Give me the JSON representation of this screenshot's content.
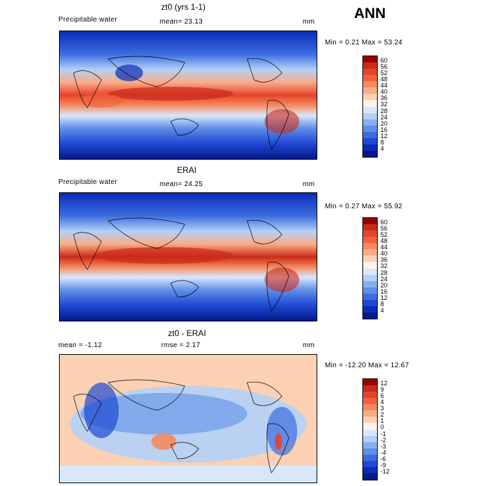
{
  "season": "ANN",
  "panels": [
    {
      "title": "zt0 (yrs 1-1)",
      "left": "Precipitable water",
      "mid": "mean=  23.13",
      "units": "mm",
      "minmax": "Min =   0.21 Max =  53.24",
      "colorbar": {
        "labels": [
          "60",
          "56",
          "52",
          "48",
          "44",
          "40",
          "36",
          "32",
          "28",
          "24",
          "20",
          "16",
          "12",
          "8",
          "4"
        ],
        "colors": [
          "#990000",
          "#cc2a1a",
          "#e6432c",
          "#f0623e",
          "#f58a5e",
          "#f9ad87",
          "#fbd0b3",
          "#fff3ea",
          "#d8e7fb",
          "#b3d0f7",
          "#88b0f0",
          "#5f8fe8",
          "#3c6de0",
          "#1f48d4",
          "#0b2bb8",
          "#041a8a"
        ]
      }
    },
    {
      "title": "ERAI",
      "left": "Precipitable water",
      "mid": "mean=  24.25",
      "units": "mm",
      "minmax": "Min =   0.27 Max =  55.92",
      "colorbar": {
        "labels": [
          "60",
          "56",
          "52",
          "48",
          "44",
          "40",
          "36",
          "32",
          "28",
          "24",
          "20",
          "16",
          "12",
          "8",
          "4"
        ],
        "colors": [
          "#990000",
          "#cc2a1a",
          "#e6432c",
          "#f0623e",
          "#f58a5e",
          "#f9ad87",
          "#fbd0b3",
          "#fff3ea",
          "#d8e7fb",
          "#b3d0f7",
          "#88b0f0",
          "#5f8fe8",
          "#3c6de0",
          "#1f48d4",
          "#0b2bb8",
          "#041a8a"
        ]
      }
    },
    {
      "title": "zt0 - ERAI",
      "left": "mean =  -1.12",
      "mid": "rmse =   2.17",
      "units": "mm",
      "minmax": "Min = -12.20 Max =  12.67",
      "colorbar": {
        "labels": [
          "12",
          "9",
          "6",
          "4",
          "3",
          "2",
          "1",
          "0",
          "-1",
          "-2",
          "-3",
          "-4",
          "-6",
          "-9",
          "-12"
        ],
        "colors": [
          "#990000",
          "#cc2a1a",
          "#e6432c",
          "#f0623e",
          "#f58a5e",
          "#f9ad87",
          "#fbd0b3",
          "#fff3ea",
          "#d8e7fb",
          "#b3d0f7",
          "#88b0f0",
          "#5f8fe8",
          "#3c6de0",
          "#1f48d4",
          "#0b2bb8",
          "#041a8a"
        ]
      }
    }
  ]
}
